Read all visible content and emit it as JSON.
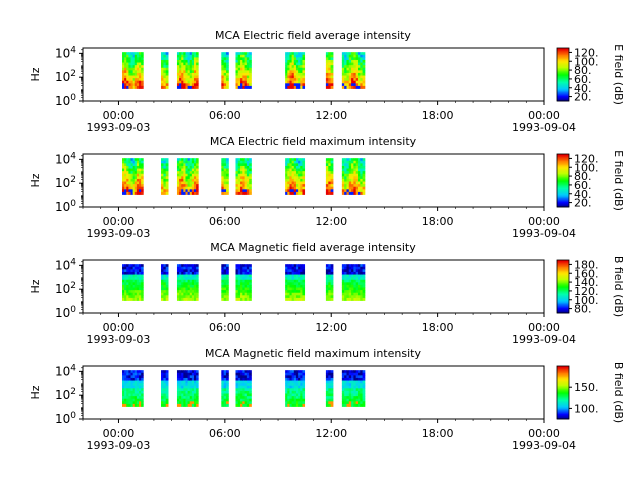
{
  "chart_data": [
    {
      "type": "heatmap",
      "title": "MCA  Electric field average intensity",
      "ylabel": "Hz",
      "colorbar_label": "E field (dB)",
      "colorbar_range": [
        10,
        130
      ],
      "colorbar_ticks": [
        "20.",
        "40.",
        "60.",
        "80.",
        "100.",
        "120."
      ],
      "colormap": "high",
      "y_scale": "log",
      "y_tick_exponents": [
        0,
        2,
        4
      ],
      "x_range_hours": [
        -2,
        24
      ],
      "x_ticks": [
        {
          "hour": 0,
          "label": "00:00"
        },
        {
          "hour": 6,
          "label": "06:00"
        },
        {
          "hour": 12,
          "label": "12:00"
        },
        {
          "hour": 18,
          "label": "18:00"
        },
        {
          "hour": 24,
          "label": "00:00"
        }
      ],
      "x_dates": [
        {
          "hour": 0,
          "label": "1993-09-03"
        },
        {
          "hour": 24,
          "label": "1993-09-04"
        }
      ]
    },
    {
      "type": "heatmap",
      "title": "MCA  Electric field maximum intensity",
      "ylabel": "Hz",
      "colorbar_label": "E field (dB)",
      "colorbar_range": [
        10,
        130
      ],
      "colorbar_ticks": [
        "20.",
        "40.",
        "60.",
        "80.",
        "100.",
        "120."
      ],
      "colormap": "high",
      "y_scale": "log",
      "y_tick_exponents": [
        0,
        2,
        4
      ],
      "x_range_hours": [
        -2,
        24
      ],
      "x_ticks": [
        {
          "hour": 0,
          "label": "00:00"
        },
        {
          "hour": 6,
          "label": "06:00"
        },
        {
          "hour": 12,
          "label": "12:00"
        },
        {
          "hour": 18,
          "label": "18:00"
        },
        {
          "hour": 24,
          "label": "00:00"
        }
      ],
      "x_dates": [
        {
          "hour": 0,
          "label": "1993-09-03"
        },
        {
          "hour": 24,
          "label": "1993-09-04"
        }
      ]
    },
    {
      "type": "heatmap",
      "title": "MCA  Magnetic field average intensity",
      "ylabel": "Hz",
      "colorbar_label": "B field (dB)",
      "colorbar_range": [
        70,
        190
      ],
      "colorbar_ticks": [
        "80.",
        "100.",
        "120.",
        "140.",
        "160.",
        "180."
      ],
      "colormap": "mid",
      "y_scale": "log",
      "y_tick_exponents": [
        0,
        2,
        4
      ],
      "x_range_hours": [
        -2,
        24
      ],
      "x_ticks": [
        {
          "hour": 0,
          "label": "00:00"
        },
        {
          "hour": 6,
          "label": "06:00"
        },
        {
          "hour": 12,
          "label": "12:00"
        },
        {
          "hour": 18,
          "label": "18:00"
        },
        {
          "hour": 24,
          "label": "00:00"
        }
      ],
      "x_dates": [
        {
          "hour": 0,
          "label": "1993-09-03"
        },
        {
          "hour": 24,
          "label": "1993-09-04"
        }
      ]
    },
    {
      "type": "heatmap",
      "title": "MCA  Magnetic field maximum intensity",
      "ylabel": "Hz",
      "colorbar_label": "B field (dB)",
      "colorbar_range": [
        75,
        200
      ],
      "colorbar_ticks": [
        "100.",
        "150."
      ],
      "colormap": "low",
      "y_scale": "log",
      "y_tick_exponents": [
        0,
        2,
        4
      ],
      "x_range_hours": [
        -2,
        24
      ],
      "x_ticks": [
        {
          "hour": 0,
          "label": "00:00"
        },
        {
          "hour": 6,
          "label": "06:00"
        },
        {
          "hour": 12,
          "label": "12:00"
        },
        {
          "hour": 18,
          "label": "18:00"
        },
        {
          "hour": 24,
          "label": "00:00"
        }
      ],
      "x_dates": [
        {
          "hour": 0,
          "label": "1993-09-03"
        },
        {
          "hour": 24,
          "label": "1993-09-04"
        }
      ]
    }
  ],
  "data_intervals_hours": [
    [
      0.2,
      1.4
    ],
    [
      2.4,
      2.8
    ],
    [
      3.3,
      4.5
    ],
    [
      5.8,
      6.2
    ],
    [
      6.6,
      7.5
    ],
    [
      9.4,
      10.5
    ],
    [
      11.7,
      12.1
    ],
    [
      12.6,
      13.9
    ]
  ]
}
